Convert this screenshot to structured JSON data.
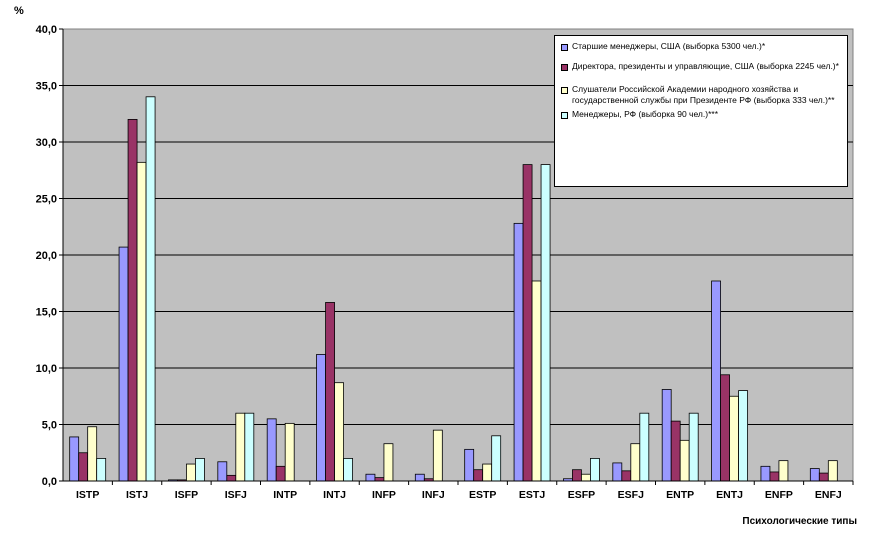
{
  "chart_data": {
    "type": "bar",
    "title": "",
    "ylabel": "%",
    "xlabel": "Психологические типы",
    "ylim": [
      0,
      40
    ],
    "yticks": [
      "0,0",
      "5,0",
      "10,0",
      "15,0",
      "20,0",
      "25,0",
      "30,0",
      "35,0",
      "40,0"
    ],
    "ytick_values": [
      0,
      5,
      10,
      15,
      20,
      25,
      30,
      35,
      40
    ],
    "grid": "horizontal",
    "legend_position": "top-right",
    "plot_background": "#c0c0c0",
    "categories": [
      "ISTP",
      "ISTJ",
      "ISFP",
      "ISFJ",
      "INTP",
      "INTJ",
      "INFP",
      "INFJ",
      "ESTP",
      "ESTJ",
      "ESFP",
      "ESFJ",
      "ENTP",
      "ENTJ",
      "ENFP",
      "ENFJ"
    ],
    "series": [
      {
        "name": "Старшие менеджеры, США (выборка 5300 чел.)*",
        "color": "#9999ff",
        "values": [
          3.9,
          20.7,
          0.1,
          1.7,
          5.5,
          11.2,
          0.6,
          0.6,
          2.8,
          22.8,
          0.2,
          1.6,
          8.1,
          17.7,
          1.3,
          1.1
        ]
      },
      {
        "name": "Директора, президенты и управляющие, США (выборка 2245 чел.)*",
        "color": "#993366",
        "values": [
          2.5,
          32.0,
          0.1,
          0.5,
          1.3,
          15.8,
          0.3,
          0.2,
          1.0,
          28.0,
          1.0,
          0.9,
          5.3,
          9.4,
          0.8,
          0.7
        ]
      },
      {
        "name": "Слушатели Российской Академии народного хозяйства и государственной службы при Президенте РФ (выборка 333 чел.)**",
        "color": "#ffffcc",
        "values": [
          4.8,
          28.2,
          1.5,
          6.0,
          5.1,
          8.7,
          3.3,
          4.5,
          1.5,
          17.7,
          0.6,
          3.3,
          3.6,
          7.5,
          1.8,
          1.8
        ]
      },
      {
        "name": "Менеджеры, РФ (выборка 90 чел.)***",
        "color": "#ccffff",
        "values": [
          2.0,
          34.0,
          2.0,
          6.0,
          0.0,
          2.0,
          0.0,
          0.0,
          4.0,
          28.0,
          2.0,
          6.0,
          6.0,
          8.0,
          0.0,
          0.0
        ]
      }
    ]
  }
}
